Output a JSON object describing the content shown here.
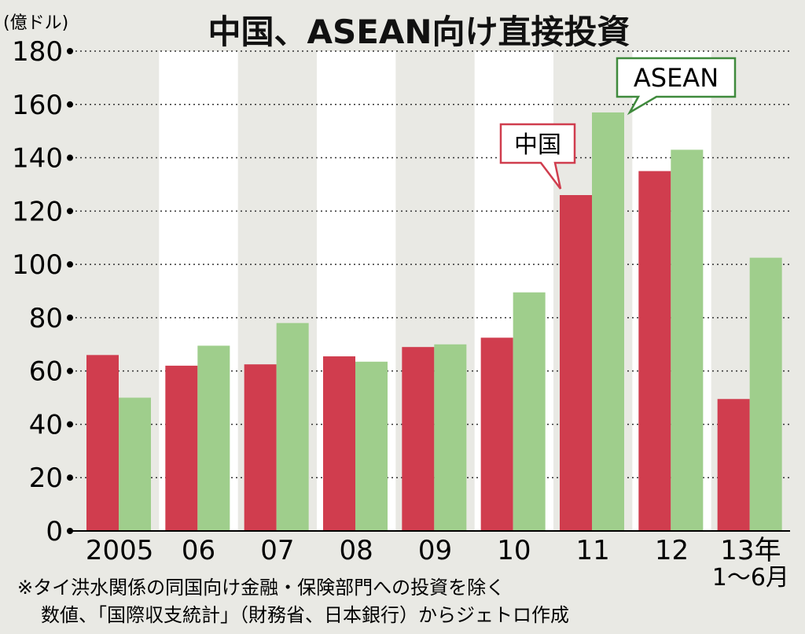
{
  "chart_data": {
    "type": "bar",
    "title": "中国、ASEAN向け直接投資",
    "unit_label": "(億ドル)",
    "categories": [
      "2005",
      "06",
      "07",
      "08",
      "09",
      "10",
      "11",
      "12",
      "13年"
    ],
    "category_sublabels": [
      "",
      "",
      "",
      "",
      "",
      "",
      "",
      "",
      "1〜6月"
    ],
    "series": [
      {
        "name": "中国",
        "color": "#d03d4e",
        "values": [
          66,
          62,
          62.5,
          65.5,
          69,
          72.5,
          126,
          135,
          49.5
        ]
      },
      {
        "name": "ASEAN",
        "color": "#9fce8c",
        "values": [
          50,
          69.5,
          78,
          63.5,
          70,
          89.5,
          157,
          143,
          102.5
        ]
      }
    ],
    "ylim": [
      0,
      180
    ],
    "yticks": [
      0,
      20,
      40,
      60,
      80,
      100,
      120,
      140,
      160,
      180
    ],
    "grid": "dotted-horizontal",
    "callouts": [
      {
        "text": "中国",
        "series": "中国",
        "color": "#d03d4e"
      },
      {
        "text": "ASEAN",
        "series": "ASEAN",
        "color": "#3f8a3c"
      }
    ],
    "footnote": [
      "※タイ洪水関係の同国向け金融・保険部門への投資を除く",
      "数値、「国際収支統計」（財務省、日本銀行）からジェトロ作成"
    ]
  }
}
